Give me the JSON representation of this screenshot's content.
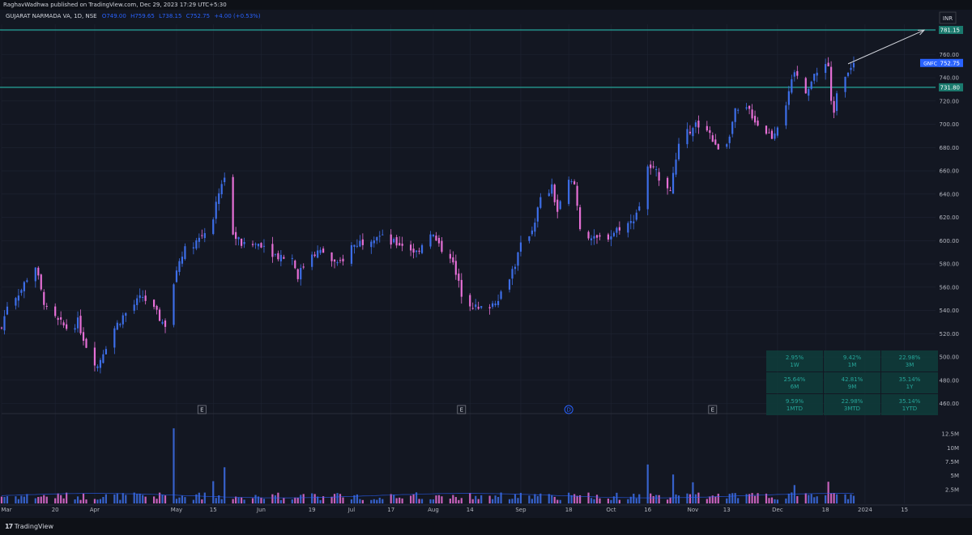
{
  "header": {
    "published": "RaghavWadhwa published on TradingView.com, Dec 29, 2023 17:29 UTC+5:30",
    "symbol_line": "GUJARAT NARMADA VA, 1D, NSE",
    "ohlc": {
      "o_label": "O",
      "o": "749.00",
      "h_label": "H",
      "h": "759.65",
      "l_label": "L",
      "l": "738.15",
      "c_label": "C",
      "c": "752.75",
      "change": "+4.00 (+0.53%)"
    }
  },
  "currency": "INR",
  "footer": {
    "logo_glyph": "17",
    "brand": "TradingView"
  },
  "colors": {
    "background": "#131722",
    "up": "#3d6ee8",
    "down": "#e66fd6",
    "level_line": "#26a69a",
    "grid": "#1f2433",
    "text": "#b2b5be"
  },
  "price_tags": [
    {
      "label": "GNFC",
      "value": "752.75",
      "price": 752.75,
      "color": "#2962ff"
    },
    {
      "label": "",
      "value": "731.80",
      "price": 731.8,
      "color": "#1a7a6e"
    },
    {
      "label": "",
      "value": "781.15",
      "price": 781.15,
      "color": "#1a7a6e"
    }
  ],
  "performance_table": [
    {
      "value": "2.95%",
      "label": "1W"
    },
    {
      "value": "9.42%",
      "label": "1M"
    },
    {
      "value": "22.98%",
      "label": "3M"
    },
    {
      "value": "25.64%",
      "label": "6M"
    },
    {
      "value": "42.81%",
      "label": "9M"
    },
    {
      "value": "35.14%",
      "label": "1Y"
    },
    {
      "value": "9.59%",
      "label": "1MTD"
    },
    {
      "value": "22.98%",
      "label": "3MTD"
    },
    {
      "value": "35.14%",
      "label": "1YTD"
    }
  ],
  "event_markers": [
    {
      "label": "E",
      "date": "2023-05-11"
    },
    {
      "label": "E",
      "date": "2023-08-11"
    },
    {
      "label": "D",
      "date": "2023-09-18"
    },
    {
      "label": "E",
      "date": "2023-11-08"
    }
  ],
  "chart_data": {
    "type": "candlestick",
    "title": "GUJARAT NARMADA VA, 1D, NSE",
    "price_axis": {
      "ylim": [
        452,
        786
      ],
      "ticks": [
        460,
        480,
        500,
        520,
        540,
        560,
        580,
        600,
        620,
        640,
        660,
        680,
        700,
        720,
        740,
        760,
        780
      ],
      "tick_labels": [
        "460.00",
        "480.00",
        "500.00",
        "520.00",
        "540.00",
        "560.00",
        "580.00",
        "600.00",
        "620.00",
        "640.00",
        "660.00",
        "680.00",
        "700.00",
        "720.00",
        "740.00",
        "760.00",
        "780.00"
      ]
    },
    "volume_axis": {
      "ylim": [
        0,
        16
      ],
      "unit": "M",
      "ticks": [
        2.5,
        5,
        7.5,
        10,
        12.5
      ],
      "tick_labels": [
        "2.5M",
        "5M",
        "7.5M",
        "10M",
        "12.5M"
      ]
    },
    "x_axis": {
      "labels": [
        "Mar",
        "20",
        "Apr",
        "May",
        "15",
        "Jun",
        "19",
        "Jul",
        "17",
        "Aug",
        "14",
        "Sep",
        "18",
        "Oct",
        "16",
        "Nov",
        "13",
        "Dec",
        "18",
        "2024",
        "15"
      ],
      "label_dates": [
        "2023-03-01",
        "2023-03-20",
        "2023-04-03",
        "2023-05-02",
        "2023-05-15",
        "2023-06-01",
        "2023-06-19",
        "2023-07-03",
        "2023-07-17",
        "2023-08-01",
        "2023-08-14",
        "2023-09-01",
        "2023-09-18",
        "2023-10-03",
        "2023-10-16",
        "2023-11-01",
        "2023-11-13",
        "2023-12-01",
        "2023-12-18",
        "2024-01-01",
        "2024-01-15"
      ],
      "range": [
        "2023-03-01",
        "2024-01-26"
      ]
    },
    "horizontal_levels": [
      781.15,
      731.8
    ],
    "arrow": {
      "from": {
        "date": "2023-12-26",
        "price": 752
      },
      "to": {
        "date": "2024-01-22",
        "price": 781
      }
    },
    "price_anchors": [
      {
        "date": "2023-03-01",
        "close": 525
      },
      {
        "date": "2023-03-03",
        "close": 545
      },
      {
        "date": "2023-03-08",
        "close": 558
      },
      {
        "date": "2023-03-10",
        "close": 568
      },
      {
        "date": "2023-03-13",
        "close": 578
      },
      {
        "date": "2023-03-15",
        "close": 556
      },
      {
        "date": "2023-03-17",
        "close": 540
      },
      {
        "date": "2023-03-21",
        "close": 530
      },
      {
        "date": "2023-03-24",
        "close": 525
      },
      {
        "date": "2023-03-28",
        "close": 530
      },
      {
        "date": "2023-03-31",
        "close": 510
      },
      {
        "date": "2023-04-04",
        "close": 492
      },
      {
        "date": "2023-04-06",
        "close": 505
      },
      {
        "date": "2023-04-10",
        "close": 525
      },
      {
        "date": "2023-04-13",
        "close": 535
      },
      {
        "date": "2023-04-17",
        "close": 545
      },
      {
        "date": "2023-04-20",
        "close": 552
      },
      {
        "date": "2023-04-24",
        "close": 540
      },
      {
        "date": "2023-04-27",
        "close": 530
      },
      {
        "date": "2023-04-28",
        "close": 528
      },
      {
        "date": "2023-05-02",
        "close": 575
      },
      {
        "date": "2023-05-04",
        "close": 590
      },
      {
        "date": "2023-05-09",
        "close": 600
      },
      {
        "date": "2023-05-11",
        "close": 605
      },
      {
        "date": "2023-05-15",
        "close": 620
      },
      {
        "date": "2023-05-18",
        "close": 650
      },
      {
        "date": "2023-05-19",
        "close": 655
      },
      {
        "date": "2023-05-22",
        "close": 605
      },
      {
        "date": "2023-05-26",
        "close": 595
      },
      {
        "date": "2023-06-01",
        "close": 598
      },
      {
        "date": "2023-06-06",
        "close": 588
      },
      {
        "date": "2023-06-12",
        "close": 585
      },
      {
        "date": "2023-06-14",
        "close": 570
      },
      {
        "date": "2023-06-19",
        "close": 590
      },
      {
        "date": "2023-06-23",
        "close": 590
      },
      {
        "date": "2023-06-28",
        "close": 578
      },
      {
        "date": "2023-07-03",
        "close": 595
      },
      {
        "date": "2023-07-07",
        "close": 600
      },
      {
        "date": "2023-07-12",
        "close": 605
      },
      {
        "date": "2023-07-17",
        "close": 598
      },
      {
        "date": "2023-07-21",
        "close": 597
      },
      {
        "date": "2023-07-26",
        "close": 590
      },
      {
        "date": "2023-07-31",
        "close": 608
      },
      {
        "date": "2023-08-03",
        "close": 595
      },
      {
        "date": "2023-08-07",
        "close": 588
      },
      {
        "date": "2023-08-09",
        "close": 570
      },
      {
        "date": "2023-08-11",
        "close": 555
      },
      {
        "date": "2023-08-14",
        "close": 547
      },
      {
        "date": "2023-08-17",
        "close": 540
      },
      {
        "date": "2023-08-22",
        "close": 546
      },
      {
        "date": "2023-08-25",
        "close": 555
      },
      {
        "date": "2023-08-30",
        "close": 580
      },
      {
        "date": "2023-09-01",
        "close": 595
      },
      {
        "date": "2023-09-05",
        "close": 610
      },
      {
        "date": "2023-09-08",
        "close": 635
      },
      {
        "date": "2023-09-12",
        "close": 645
      },
      {
        "date": "2023-09-14",
        "close": 625
      },
      {
        "date": "2023-09-18",
        "close": 650
      },
      {
        "date": "2023-09-20",
        "close": 648
      },
      {
        "date": "2023-09-22",
        "close": 612
      },
      {
        "date": "2023-09-27",
        "close": 600
      },
      {
        "date": "2023-10-03",
        "close": 605
      },
      {
        "date": "2023-10-06",
        "close": 612
      },
      {
        "date": "2023-10-10",
        "close": 615
      },
      {
        "date": "2023-10-13",
        "close": 630
      },
      {
        "date": "2023-10-16",
        "close": 665
      },
      {
        "date": "2023-10-20",
        "close": 655
      },
      {
        "date": "2023-10-24",
        "close": 645
      },
      {
        "date": "2023-10-27",
        "close": 680
      },
      {
        "date": "2023-11-01",
        "close": 700
      },
      {
        "date": "2023-11-06",
        "close": 698
      },
      {
        "date": "2023-11-09",
        "close": 680
      },
      {
        "date": "2023-11-13",
        "close": 685
      },
      {
        "date": "2023-11-16",
        "close": 710
      },
      {
        "date": "2023-11-21",
        "close": 712
      },
      {
        "date": "2023-11-24",
        "close": 700
      },
      {
        "date": "2023-11-29",
        "close": 690
      },
      {
        "date": "2023-12-01",
        "close": 700
      },
      {
        "date": "2023-12-05",
        "close": 725
      },
      {
        "date": "2023-12-07",
        "close": 745
      },
      {
        "date": "2023-12-11",
        "close": 730
      },
      {
        "date": "2023-12-14",
        "close": 740
      },
      {
        "date": "2023-12-18",
        "close": 755
      },
      {
        "date": "2023-12-19",
        "close": 750
      },
      {
        "date": "2023-12-20",
        "close": 718
      },
      {
        "date": "2023-12-21",
        "close": 712
      },
      {
        "date": "2023-12-22",
        "close": 730
      },
      {
        "date": "2023-12-26",
        "close": 748
      },
      {
        "date": "2023-12-28",
        "close": 752.75
      }
    ],
    "volume_spikes": [
      {
        "date": "2023-05-01",
        "value": 13.5
      },
      {
        "date": "2023-05-19",
        "value": 6.5
      },
      {
        "date": "2023-05-15",
        "value": 4.0
      },
      {
        "date": "2023-10-16",
        "value": 7.0
      },
      {
        "date": "2023-10-25",
        "value": 5.2
      },
      {
        "date": "2023-11-01",
        "value": 3.8
      },
      {
        "date": "2023-12-19",
        "value": 3.9
      },
      {
        "date": "2023-12-07",
        "value": 3.3
      }
    ]
  }
}
